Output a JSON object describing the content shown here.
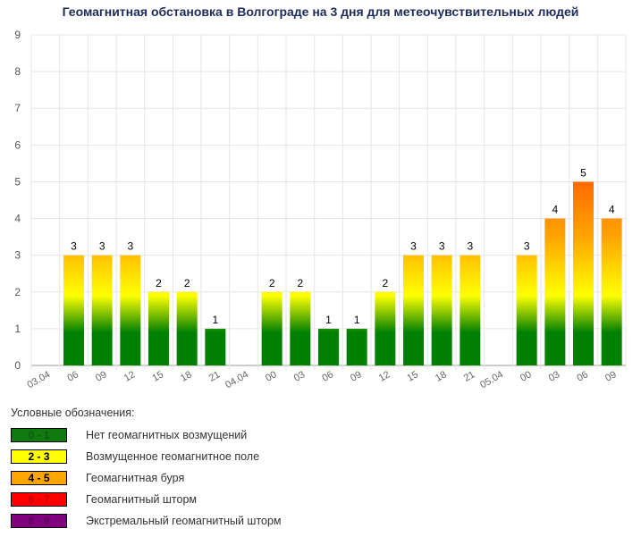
{
  "chart_data": {
    "type": "bar",
    "title": "Геомагнитная обстановка в Волгограде на 3 дня для метеочувствительных людей",
    "categories": [
      "03.04",
      "06",
      "09",
      "12",
      "15",
      "18",
      "21",
      "04.04",
      "00",
      "03",
      "06",
      "09",
      "12",
      "15",
      "18",
      "21",
      "05.04",
      "00",
      "03",
      "06",
      "09"
    ],
    "values": [
      null,
      3,
      3,
      3,
      2,
      2,
      1,
      null,
      2,
      2,
      1,
      1,
      2,
      3,
      3,
      3,
      null,
      3,
      4,
      5,
      4
    ],
    "ylim": [
      0,
      9
    ],
    "yticks": [
      "0",
      "1",
      "2",
      "3",
      "4",
      "5",
      "6",
      "7",
      "8",
      "9"
    ],
    "grid": true,
    "gradient_colors": [
      "#008000",
      "#008000",
      "#ffff00",
      "#ffa500",
      "#ff6a00"
    ]
  },
  "legend": {
    "title": "Условные обозначения:",
    "items": [
      {
        "range": "0 - 1",
        "label": "Нет геомагнитных возмущений",
        "color": "#107a10",
        "text": "#0b5d0b"
      },
      {
        "range": "2 - 3",
        "label": "Возмущенное геомагнитное поле",
        "color": "#ffff00",
        "text": "#000000"
      },
      {
        "range": "4 - 5",
        "label": "Геомагнитная буря",
        "color": "#ffa500",
        "text": "#000000"
      },
      {
        "range": "6 - 7",
        "label": "Геомагнитный шторм",
        "color": "#ff0000",
        "text": "#c00000"
      },
      {
        "range": "8 - 9",
        "label": "Экстремальный геомагнитный шторм",
        "color": "#800080",
        "text": "#5a005a"
      }
    ]
  }
}
